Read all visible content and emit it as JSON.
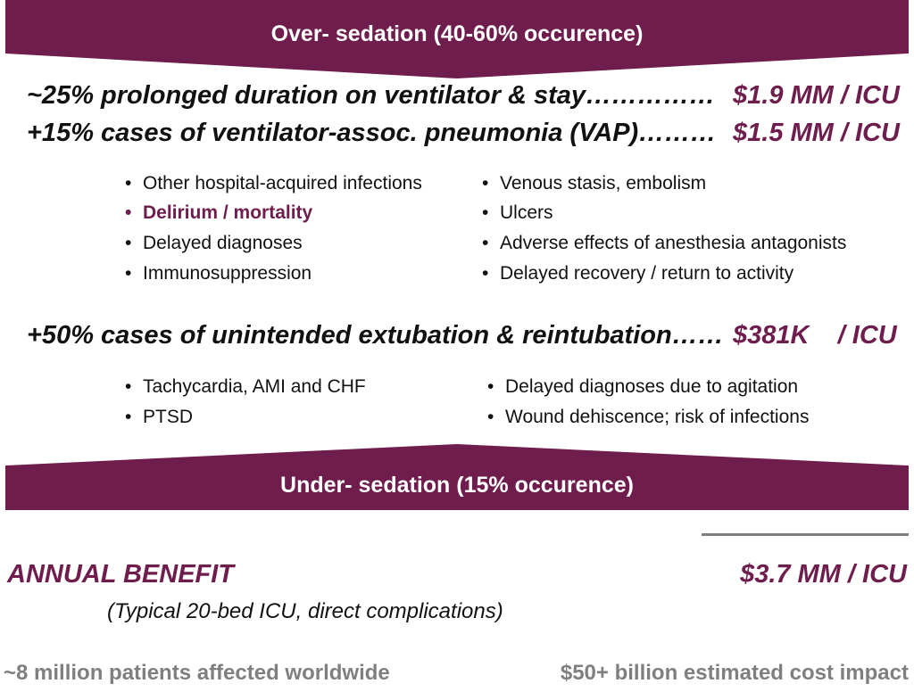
{
  "colors": {
    "accent": "#6e1d4c",
    "text": "#111111",
    "muted": "#7f7f7f"
  },
  "top_banner": {
    "label": "Over- sedation (40-60% occurence)"
  },
  "over": {
    "lines": [
      {
        "text": "~25% prolonged duration on ventilator & stay……………",
        "cost": "$1.9 MM / ICU"
      },
      {
        "text": "+15% cases of ventilator-assoc. pneumonia (VAP)………",
        "cost": "$1.5 MM / ICU"
      }
    ],
    "bullets_left": [
      "Other hospital-acquired infections",
      "Delirium / mortality",
      "Delayed diagnoses",
      "Immunosuppression"
    ],
    "bullets_right": [
      "Venous stasis, embolism",
      "Ulcers",
      "Adverse effects of anesthesia antagonists",
      "Delayed recovery / return to activity"
    ]
  },
  "under": {
    "line": {
      "text": "+50% cases of unintended extubation & reintubation……",
      "cost": "$381K    / ICU"
    },
    "bullets_left": [
      "Tachycardia, AMI and CHF",
      "PTSD"
    ],
    "bullets_right": [
      "Delayed diagnoses due to agitation",
      "Wound dehiscence; risk of infections"
    ]
  },
  "bottom_banner": {
    "label": "Under- sedation (15% occurence)"
  },
  "benefit": {
    "title": "ANNUAL BENEFIT",
    "value": "$3.7 MM / ICU",
    "note": "(Typical 20-bed ICU, direct complications)"
  },
  "footer": {
    "left": "~8 million patients affected worldwide",
    "right": "$50+ billion estimated cost impact"
  },
  "bullet_glyph": "•"
}
